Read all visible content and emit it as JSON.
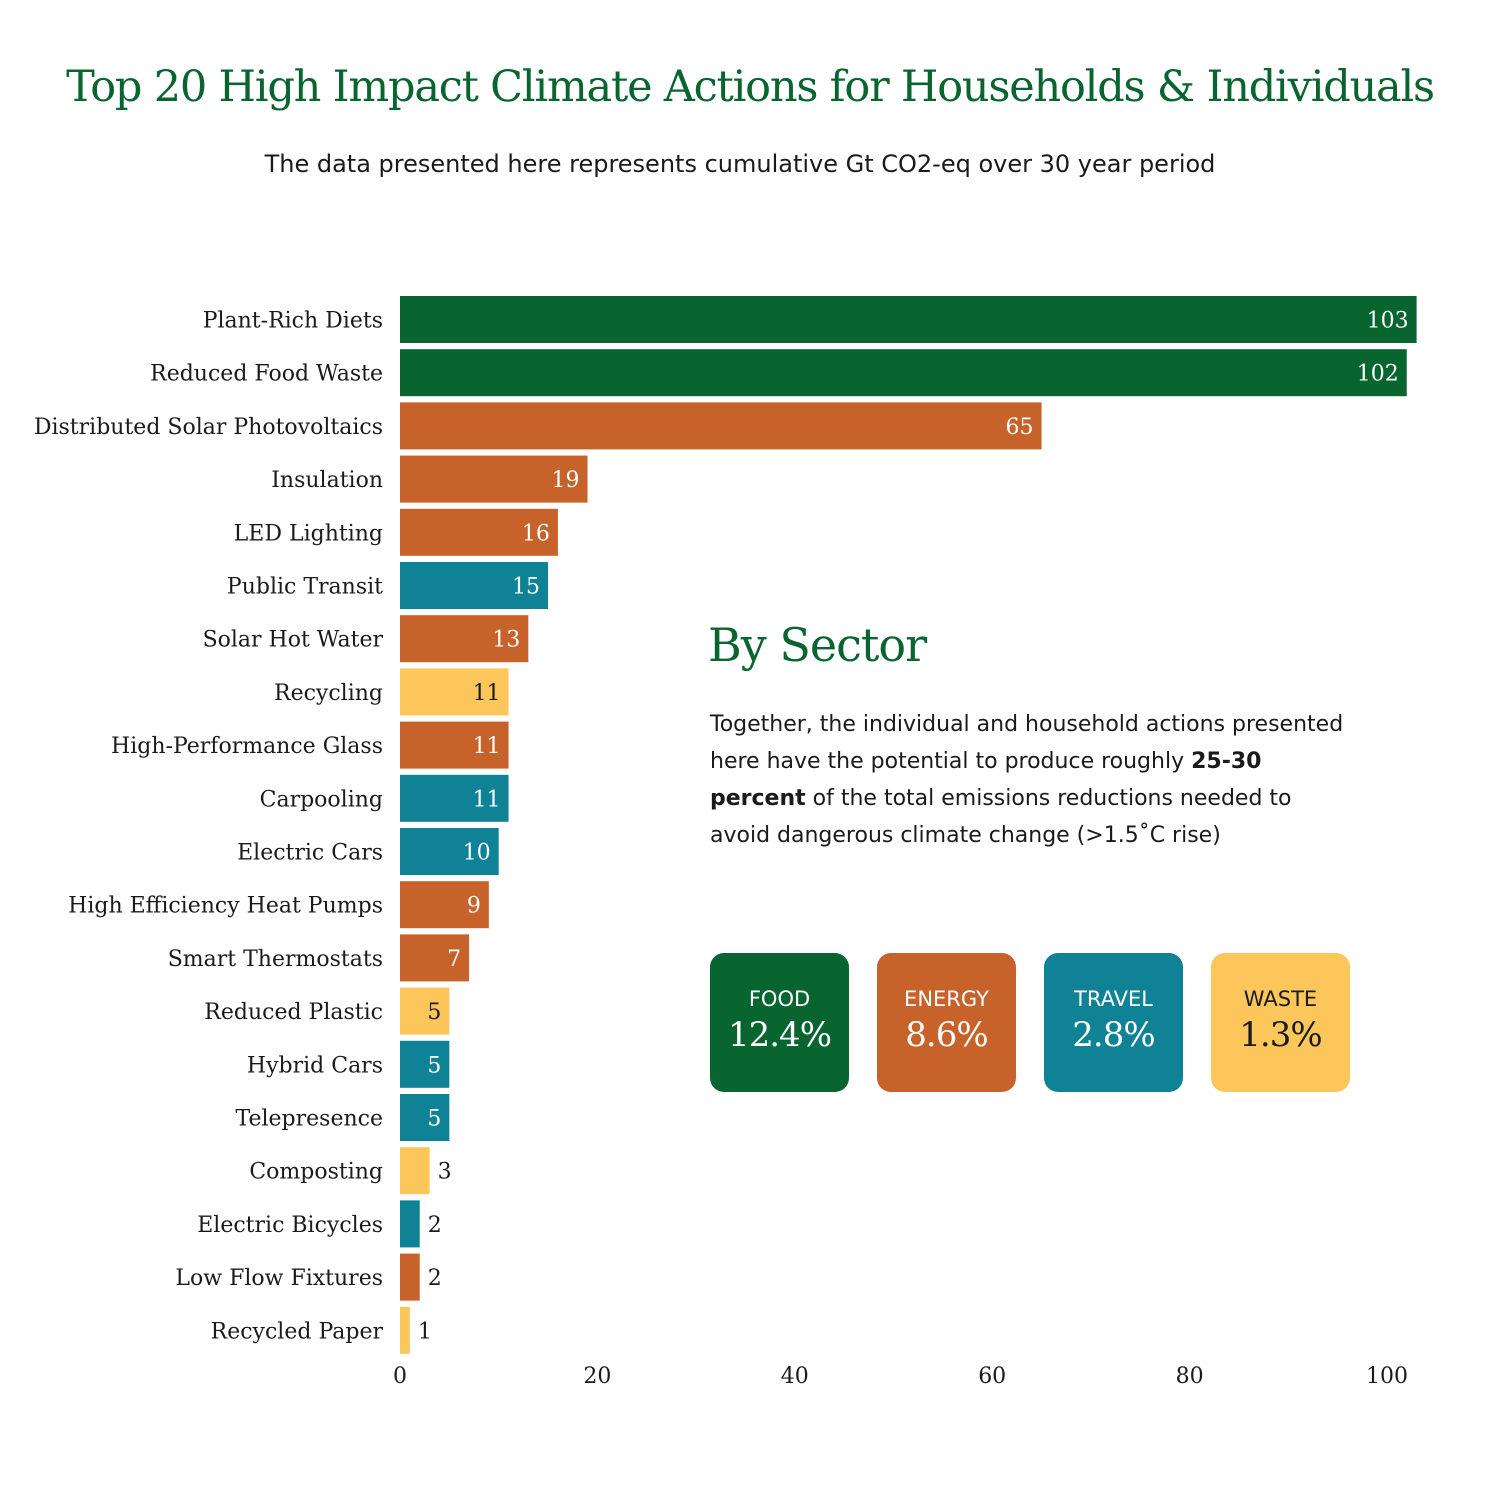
{
  "title": "Top 20 High Impact Climate Actions for Households & Individuals",
  "subtitle": "The data presented here represents cumulative Gt CO2-eq over 30 year period",
  "colors": {
    "Food": "#08652f",
    "Energy": "#c6622a",
    "Travel": "#0f8296",
    "Waste": "#fcc65a"
  },
  "chart_data": {
    "type": "bar",
    "orientation": "horizontal",
    "title": "",
    "xlabel": "",
    "ylabel": "",
    "xlim": [
      0,
      103
    ],
    "xticks": [
      0,
      20,
      40,
      60,
      80,
      100
    ],
    "grid": false,
    "categories": [
      "Plant-Rich Diets",
      "Reduced Food Waste",
      "Distributed Solar Photovoltaics",
      "Insulation",
      "LED Lighting",
      "Public Transit",
      "Solar Hot Water",
      "Recycling",
      "High-Performance Glass",
      "Carpooling",
      "Electric Cars",
      "High Efficiency Heat Pumps",
      "Smart Thermostats",
      "Reduced Plastic",
      "Hybrid Cars",
      "Telepresence",
      "Composting",
      "Electric Bicycles",
      "Low Flow Fixtures",
      "Recycled Paper"
    ],
    "values": [
      103,
      102,
      65,
      19,
      16,
      15,
      13,
      11,
      11,
      11,
      10,
      9,
      7,
      5,
      5,
      5,
      3,
      2,
      2,
      1
    ],
    "sectors": [
      "Food",
      "Food",
      "Energy",
      "Energy",
      "Energy",
      "Travel",
      "Energy",
      "Waste",
      "Energy",
      "Travel",
      "Travel",
      "Energy",
      "Energy",
      "Waste",
      "Travel",
      "Travel",
      "Waste",
      "Travel",
      "Energy",
      "Waste"
    ]
  },
  "by_sector": {
    "heading": "By Sector",
    "text_before": "Together, the individual and household actions presented here have the potential to produce roughly ",
    "text_bold": "25-30 percent",
    "text_after": " of the total emissions reductions needed to avoid dangerous climate change (>1.5˚C rise)",
    "cards": [
      {
        "name": "FOOD",
        "percent": "12.4%",
        "color": "#08652f",
        "text_color": "#ffffff"
      },
      {
        "name": "ENERGY",
        "percent": "8.6%",
        "color": "#c6622a",
        "text_color": "#ffffff"
      },
      {
        "name": "TRAVEL",
        "percent": "2.8%",
        "color": "#0f8296",
        "text_color": "#ffffff"
      },
      {
        "name": "WASTE",
        "percent": "1.3%",
        "color": "#fcc65a",
        "text_color": "#1a1a1a"
      }
    ]
  }
}
